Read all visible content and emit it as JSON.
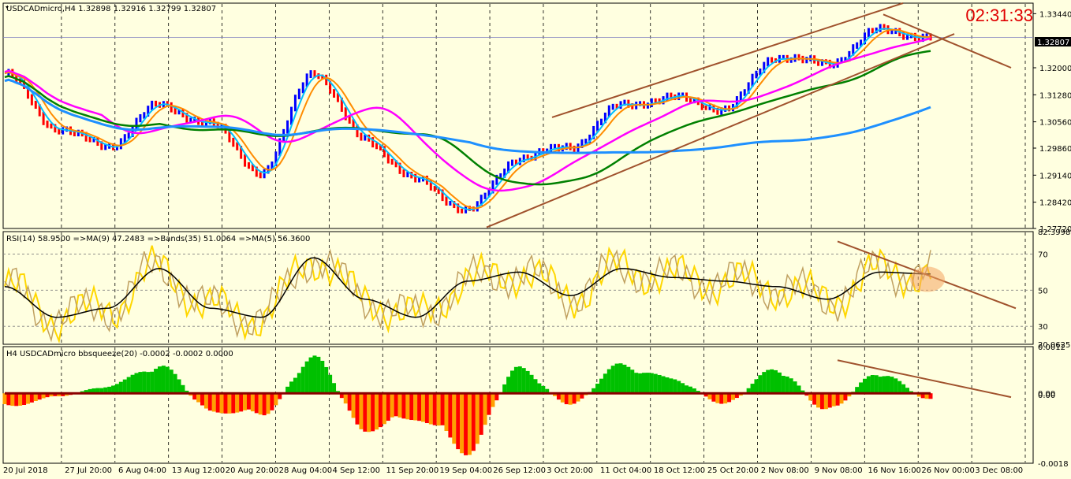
{
  "main_panel": {
    "header": "USDCADmicro,H4  1.32898 1.32916 1.32799 1.32807",
    "timer": "02:31:33",
    "price_ticks": [
      "1.33440",
      "1.32000",
      "1.31280",
      "1.30560",
      "1.29860",
      "1.29140",
      "1.28420",
      "1.27720"
    ],
    "current_price": "1.32807",
    "y_range": [
      1.2772,
      1.3372
    ]
  },
  "rsi_panel": {
    "header": "RSI(14) 58.9500  =>MA(9) 47.2483  =>Bands(35) 51.0064  =>MA(5) 56.3600",
    "ticks": [
      "82.3998",
      "70",
      "50",
      "30",
      "20.0625"
    ],
    "levels": [
      70,
      50,
      30
    ],
    "y_range": [
      20.0625,
      82.3998
    ]
  },
  "squeeze_panel": {
    "header": "H4 USDCADmicro bbsqueeze(20) -0.0002 -0.0002 0.0000",
    "ticks": [
      "0.0012",
      "0.00",
      "0.00",
      "-0.0018"
    ],
    "y_range": [
      -0.0018,
      0.0012
    ]
  },
  "x_axis_labels": [
    "20 Jul 2018",
    "27 Jul 20:00",
    "6 Aug 04:00",
    "13 Aug 12:00",
    "20 Aug 20:00",
    "28 Aug 04:00",
    "4 Sep 12:00",
    "11 Sep 20:00",
    "19 Sep 04:00",
    "26 Sep 12:00",
    "3 Oct 20:00",
    "11 Oct 04:00",
    "18 Oct 12:00",
    "25 Oct 20:00",
    "2 Nov 08:00",
    "9 Nov 08:00",
    "16 Nov 16:00",
    "26 Nov 00:00",
    "3 Dec 08:00"
  ],
  "colors": {
    "background": "#ffffe0",
    "bull_bar": "#0000ff",
    "bear_bar": "#ff0000",
    "ma_fast": "#00bfff",
    "ma_mid": "#ff8c00",
    "ma_magenta": "#ff00ff",
    "ma_slow_blue": "#1e90ff",
    "ma_green": "#008000",
    "trend": "#a0522d",
    "rsi": "#ffd700",
    "rsi_ma": "#c0a060",
    "rsi_bands": "#000000",
    "sq_green": "#00c000",
    "sq_red": "#ff0000",
    "sq_orange": "#ffa000"
  },
  "chart_data": [
    {
      "type": "line",
      "title": "USDCADmicro,H4",
      "series": [
        {
          "name": "USDCADmicro",
          "x": [
            "20 Jul 2018",
            "27 Jul 20:00",
            "6 Aug 04:00",
            "13 Aug 12:00",
            "20 Aug 20:00",
            "28 Aug 04:00",
            "4 Sep 12:00",
            "11 Sep 20:00",
            "19 Sep 04:00",
            "26 Sep 12:00",
            "3 Oct 20:00",
            "11 Oct 04:00",
            "18 Oct 12:00",
            "25 Oct 20:00",
            "2 Nov 08:00",
            "9 Nov 08:00",
            "16 Nov 16:00",
            "26 Nov 00:00",
            "3 Dec 08:00"
          ],
          "values": [
            1.3185,
            1.304,
            1.299,
            1.31,
            1.305,
            1.292,
            1.319,
            1.301,
            1.29,
            1.282,
            1.296,
            1.299,
            1.31,
            1.312,
            1.309,
            1.323,
            1.321,
            1.33,
            1.3281
          ]
        }
      ],
      "ylim": [
        1.2772,
        1.3372
      ]
    },
    {
      "type": "line",
      "title": "RSI(14)",
      "series": [
        {
          "name": "RSI(14)",
          "values": [
            52,
            35,
            40,
            62,
            40,
            35,
            68,
            45,
            35,
            55,
            60,
            47,
            62,
            57,
            55,
            52,
            45,
            60,
            58.95
          ]
        }
      ],
      "ylim": [
        20.0625,
        82.3998
      ]
    },
    {
      "type": "bar",
      "title": "bbsqueeze(20)",
      "series": [
        {
          "name": "bbsqueeze(20)",
          "values": [
            -0.0004,
            -0.0001,
            0.0002,
            0.0008,
            -0.0005,
            -0.0006,
            0.001,
            -0.001,
            -0.0007,
            -0.0016,
            0.0007,
            -0.0003,
            0.0008,
            0.0004,
            -0.0003,
            0.0007,
            -0.0005,
            0.0006,
            -0.0002
          ]
        }
      ],
      "ylim": [
        -0.0018,
        0.0012
      ]
    }
  ]
}
